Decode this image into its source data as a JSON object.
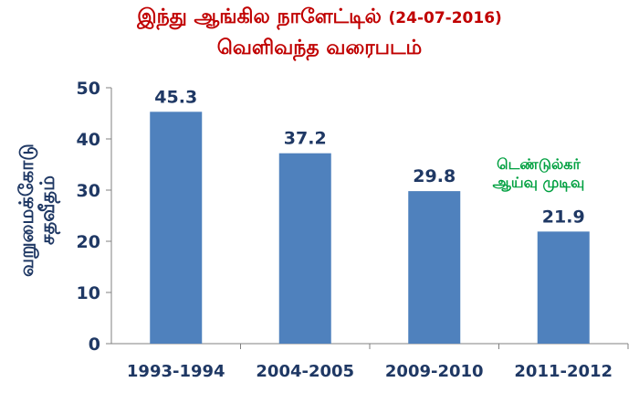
{
  "chart_data": {
    "type": "bar",
    "title_main": "இந்து ஆங்கில நாளேட்டில்",
    "title_date": "(24-07-2016)",
    "title_line2": "வெளிவந்த வரைபடம்",
    "ylabel_line1": "வறுமைக்கோடு",
    "ylabel_line2": "சதவீதம்",
    "categories": [
      "1993-1994",
      "2004-2005",
      "2009-2010",
      "2011-2012"
    ],
    "values": [
      45.3,
      37.2,
      29.8,
      21.9
    ],
    "data_labels": [
      "45.3",
      "37.2",
      "29.8",
      "21.9"
    ],
    "ylim": [
      0,
      50
    ],
    "yticks": [
      0,
      10,
      20,
      30,
      40,
      50
    ],
    "annotation_line1": "டெண்டுல்கர்",
    "annotation_line2": "ஆய்வு முடிவு",
    "grid": false,
    "colors": {
      "bar": "#4f81bd",
      "label": "#1f3864",
      "title": "#c00000",
      "annotation": "#00a040"
    }
  }
}
